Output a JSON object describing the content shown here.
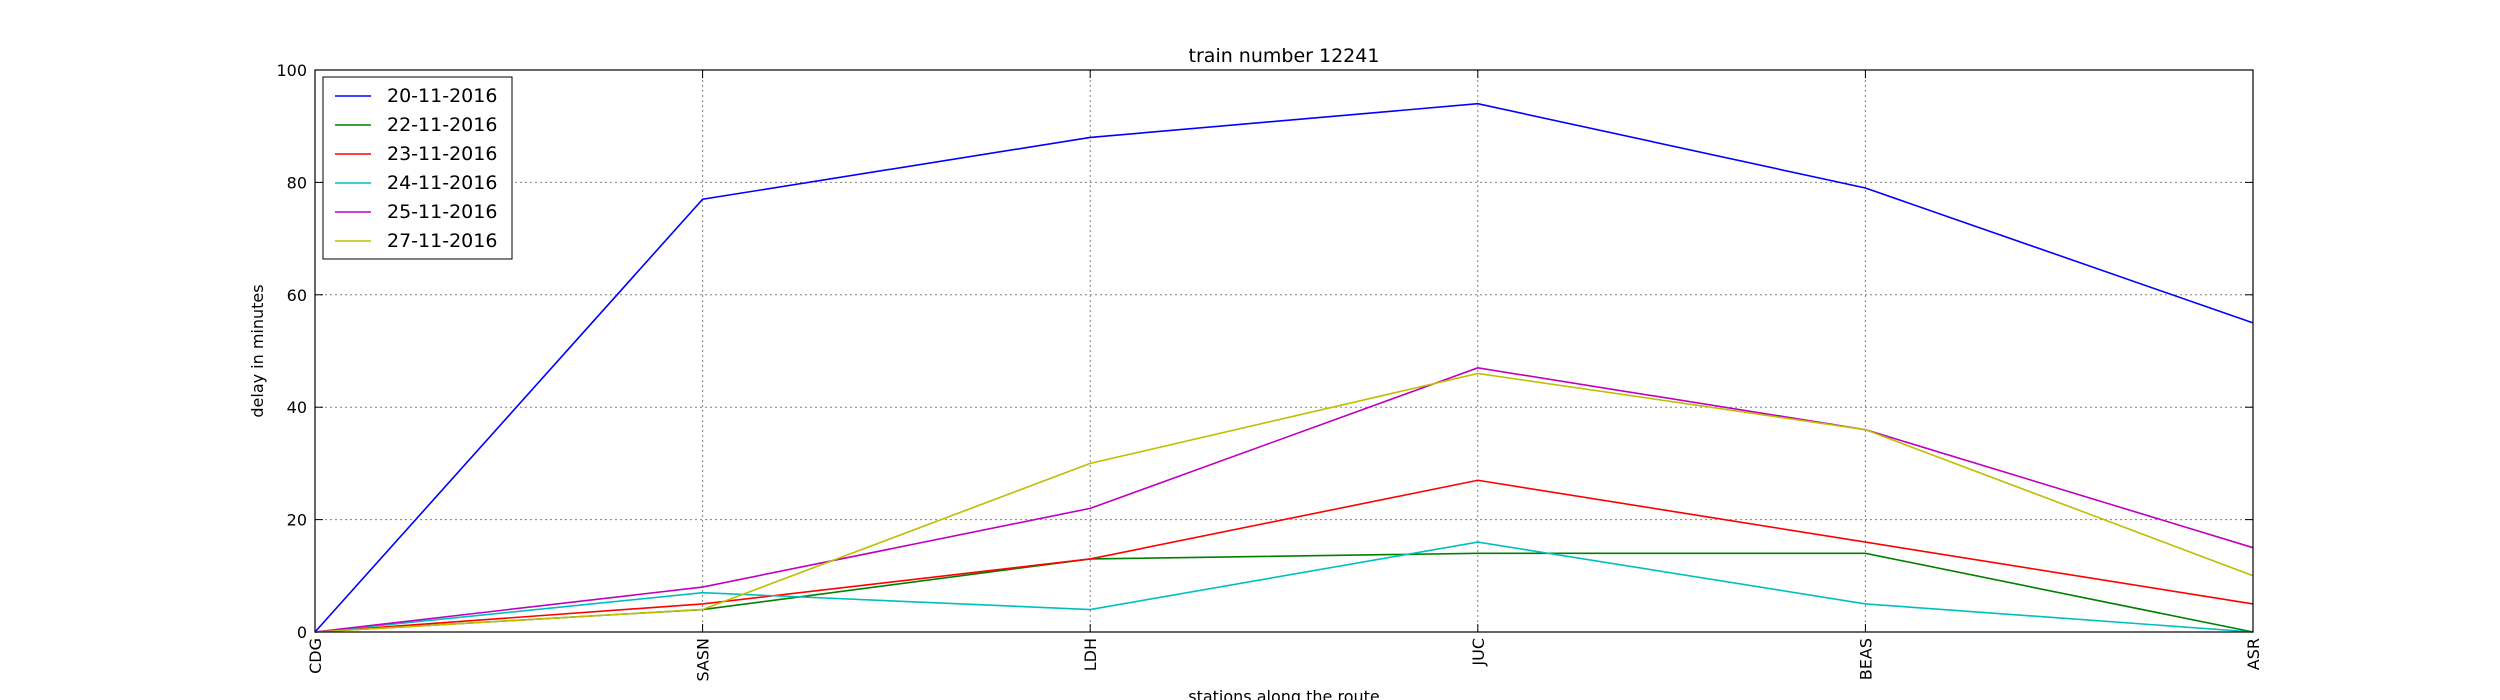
{
  "chart_data": {
    "type": "line",
    "title": "train number 12241",
    "xlabel": "stations along the route",
    "ylabel": "delay in minutes",
    "categories": [
      "CDG",
      "SASN",
      "LDH",
      "JUC",
      "BEAS",
      "ASR"
    ],
    "ylim": [
      0,
      100
    ],
    "yticks": [
      0,
      20,
      40,
      60,
      80,
      100
    ],
    "grid": true,
    "legend_position": "top-left",
    "series": [
      {
        "name": "20-11-2016",
        "color": "#0000ff",
        "values": [
          0,
          77,
          88,
          94,
          79,
          55
        ]
      },
      {
        "name": "22-11-2016",
        "color": "#008000",
        "values": [
          0,
          4,
          13,
          14,
          14,
          0
        ]
      },
      {
        "name": "23-11-2016",
        "color": "#ff0000",
        "values": [
          0,
          5,
          13,
          27,
          16,
          5
        ]
      },
      {
        "name": "24-11-2016",
        "color": "#00bfbf",
        "values": [
          0,
          7,
          4,
          16,
          5,
          0
        ]
      },
      {
        "name": "25-11-2016",
        "color": "#bf00bf",
        "values": [
          0,
          8,
          22,
          47,
          36,
          15
        ]
      },
      {
        "name": "27-11-2016",
        "color": "#bfbf00",
        "values": [
          0,
          4,
          30,
          46,
          36,
          10
        ]
      }
    ]
  }
}
